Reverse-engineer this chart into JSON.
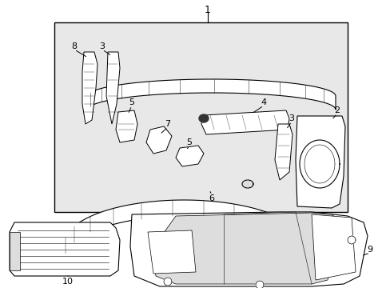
{
  "bg_color": "#ffffff",
  "box_bg": "#e8e8e8",
  "fig_width": 4.89,
  "fig_height": 3.6,
  "dpi": 100,
  "lc": "#000000",
  "pc": "#333333",
  "part_fill": "#ffffff",
  "part_shade": "#dddddd"
}
